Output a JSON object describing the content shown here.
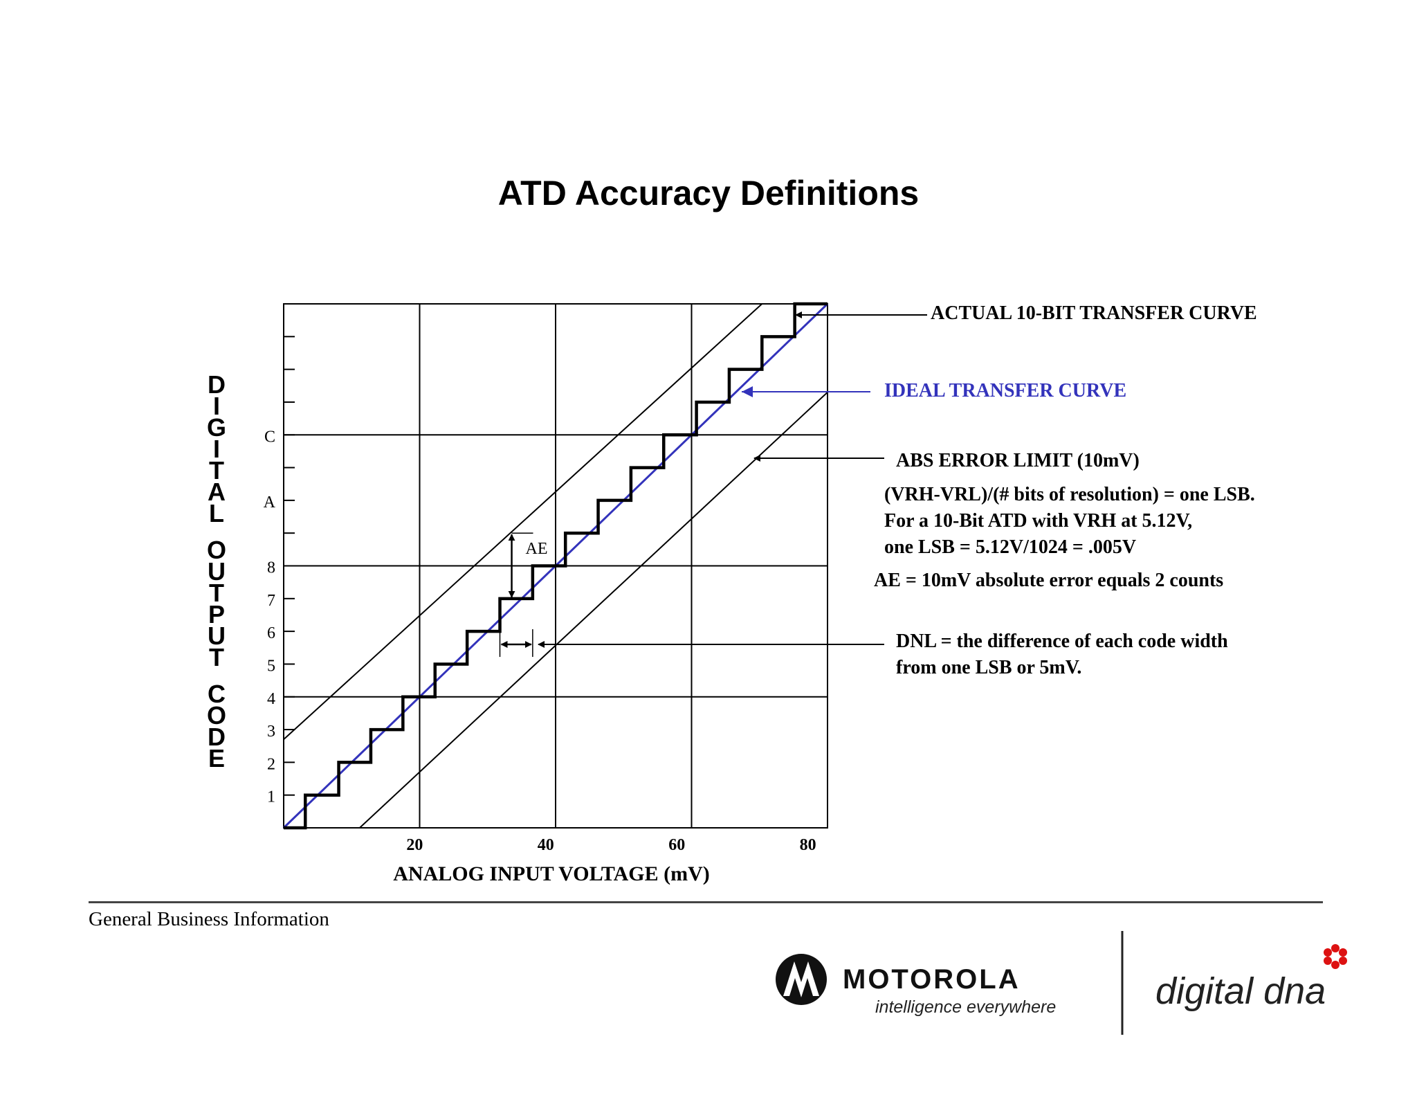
{
  "title": "ATD Accuracy Definitions",
  "chart_data": {
    "type": "line",
    "xlabel": "ANALOG INPUT VOLTAGE (mV)",
    "ylabel": "DIGITAL OUTPUT CODE",
    "xlim": [
      0,
      83
    ],
    "ylim": [
      0,
      16
    ],
    "x_ticks": [
      "20",
      "40",
      "60",
      "80"
    ],
    "x_tick_values": [
      20,
      40,
      60,
      80
    ],
    "y_ticks": [
      {
        "code": 1,
        "label": "1"
      },
      {
        "code": 2,
        "label": "2"
      },
      {
        "code": 3,
        "label": "3"
      },
      {
        "code": 4,
        "label": "4"
      },
      {
        "code": 5,
        "label": "5"
      },
      {
        "code": 6,
        "label": "6"
      },
      {
        "code": 7,
        "label": "7"
      },
      {
        "code": 8,
        "label": "8"
      },
      {
        "code": 9,
        "label": ""
      },
      {
        "code": 10,
        "label": "A"
      },
      {
        "code": 11,
        "label": ""
      },
      {
        "code": 12,
        "label": "C"
      },
      {
        "code": 13,
        "label": ""
      },
      {
        "code": 14,
        "label": ""
      },
      {
        "code": 15,
        "label": ""
      }
    ],
    "grid": true,
    "grid_x": [
      20.75,
      41.5,
      62.25
    ],
    "grid_y": [
      4,
      8,
      12
    ],
    "series": [
      {
        "name": "ACTUAL 10-BIT TRANSFER CURVE",
        "color": "#000000",
        "step_x": [
          0,
          3.3,
          8.4,
          13.3,
          18.2,
          23.1,
          28,
          33,
          38,
          43,
          48,
          53,
          58,
          63,
          68,
          73,
          78,
          83
        ],
        "step_y": [
          0,
          1,
          2,
          3,
          4,
          5,
          6,
          7,
          8,
          9,
          10,
          11,
          12,
          13,
          14,
          15,
          16
        ]
      },
      {
        "name": "IDEAL TRANSFER CURVE",
        "color": "#3333bb",
        "x": [
          0,
          83
        ],
        "y": [
          0,
          16
        ]
      },
      {
        "name": "ABS ERROR LIMIT (10mV)",
        "color": "#000000",
        "upper": {
          "x": [
            0,
            73
          ],
          "y": [
            2.7,
            16
          ]
        },
        "lower": {
          "x": [
            11.6,
            83
          ],
          "y": [
            0,
            13.3
          ]
        }
      }
    ],
    "annotations": {
      "ae_label": "AE",
      "ae_x": 34.8,
      "ae_y": [
        7,
        9
      ],
      "dnl_x": [
        33,
        38
      ],
      "dnl_y": 5.6
    }
  },
  "labels": {
    "actual": "ACTUAL 10-BIT TRANSFER CURVE",
    "ideal": "IDEAL TRANSFER CURVE",
    "abs": "ABS ERROR LIMIT (10mV)",
    "lsb1": "(VRH-VRL)/(# bits of resolution) = one LSB.",
    "lsb2": "For a 10-Bit ATD with VRH at 5.12V,",
    "lsb3": "one LSB = 5.12V/1024 = .005V",
    "ae_def": "AE = 10mV absolute error equals 2 counts",
    "dnl1": "DNL = the difference of each code width",
    "dnl2": "from one LSB or 5mV."
  },
  "footer": {
    "text": "General Business Information",
    "brand": "MOTOROLA",
    "tagline": "intelligence everywhere",
    "product": "digital dna"
  }
}
